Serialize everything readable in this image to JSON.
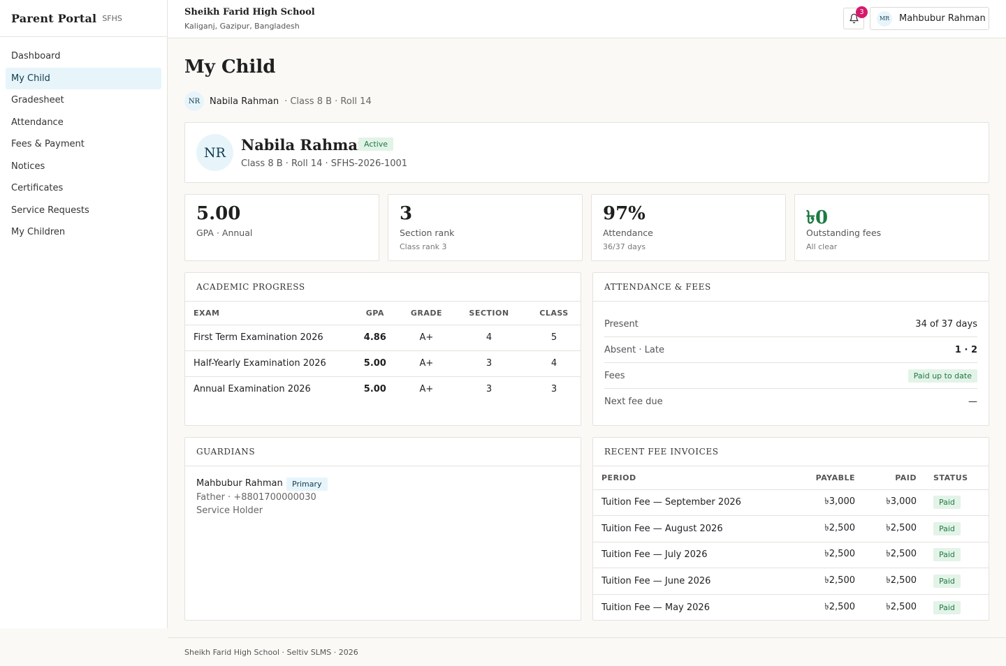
{
  "app": {
    "title": "Parent Portal",
    "abbr": "SFHS"
  },
  "sidebar": {
    "items": [
      {
        "label": "Dashboard"
      },
      {
        "label": "My Child"
      },
      {
        "label": "Gradesheet"
      },
      {
        "label": "Attendance"
      },
      {
        "label": "Fees & Payment"
      },
      {
        "label": "Notices"
      },
      {
        "label": "Certificates"
      },
      {
        "label": "Service Requests"
      },
      {
        "label": "My Children"
      }
    ],
    "active": "My Child"
  },
  "header": {
    "school_name": "Sheikh Farid High School",
    "school_location": "Kaliganj, Gazipur, Bangladesh",
    "notification_count": "3",
    "user_initials": "MR",
    "user_name": "Mahbubur Rahman"
  },
  "page": {
    "title": "My Child"
  },
  "child_picker": {
    "initials": "NR",
    "name": "Nabila Rahman",
    "meta": "· Class 8 B · Roll 14"
  },
  "profile": {
    "initials": "NR",
    "name": "Nabila Rahman",
    "status": "Active",
    "meta": "Class 8 B · Roll 14 · SFHS-2026-1001"
  },
  "stats": [
    {
      "value": "5.00",
      "label": "GPA · Annual",
      "sub": ""
    },
    {
      "value": "3",
      "label": "Section rank",
      "sub": "Class rank 3"
    },
    {
      "value": "97%",
      "label": "Attendance",
      "sub": "36/37 days"
    },
    {
      "value": "৳0",
      "label": "Outstanding fees",
      "sub": "All clear"
    }
  ],
  "academic_progress": {
    "title": "ACADEMIC PROGRESS",
    "columns": [
      "EXAM",
      "GPA",
      "GRADE",
      "SECTION",
      "CLASS"
    ],
    "rows": [
      {
        "exam": "First Term Examination 2026",
        "gpa": "4.86",
        "grade": "A+",
        "section": "4",
        "class": "5"
      },
      {
        "exam": "Half-Yearly Examination 2026",
        "gpa": "5.00",
        "grade": "A+",
        "section": "3",
        "class": "4"
      },
      {
        "exam": "Annual Examination 2026",
        "gpa": "5.00",
        "grade": "A+",
        "section": "3",
        "class": "3"
      }
    ]
  },
  "attendance_fees": {
    "title": "ATTENDANCE & FEES",
    "rows": [
      {
        "label": "Present",
        "value": "34 of 37 days"
      },
      {
        "label": "Absent · Late",
        "value": "1 · 2"
      },
      {
        "label": "Fees",
        "value": "Paid up to date"
      },
      {
        "label": "Next fee due",
        "value": "—"
      }
    ]
  },
  "guardians": {
    "title": "GUARDIANS",
    "items": [
      {
        "name": "Mahbubur Rahman",
        "badge": "Primary",
        "line1": "Father · +8801700000030",
        "line2": "Service Holder"
      }
    ]
  },
  "invoices": {
    "title": "RECENT FEE INVOICES",
    "columns": [
      "PERIOD",
      "PAYABLE",
      "PAID",
      "STATUS"
    ],
    "rows": [
      {
        "period": "Tuition Fee — September 2026",
        "payable": "৳3,000",
        "paid": "৳3,000",
        "status": "Paid"
      },
      {
        "period": "Tuition Fee — August 2026",
        "payable": "৳2,500",
        "paid": "৳2,500",
        "status": "Paid"
      },
      {
        "period": "Tuition Fee — July 2026",
        "payable": "৳2,500",
        "paid": "৳2,500",
        "status": "Paid"
      },
      {
        "period": "Tuition Fee — June 2026",
        "payable": "৳2,500",
        "paid": "৳2,500",
        "status": "Paid"
      },
      {
        "period": "Tuition Fee — May 2026",
        "payable": "৳2,500",
        "paid": "৳2,500",
        "status": "Paid"
      }
    ]
  },
  "footer": {
    "text": "Sheikh Farid High School · Seltiv SLMS · 2026"
  },
  "colors": {
    "accent_bg": "#e7f5fb",
    "accent_text": "#0f3a4d",
    "success": "#1d7a42",
    "notification": "#d6186b"
  }
}
